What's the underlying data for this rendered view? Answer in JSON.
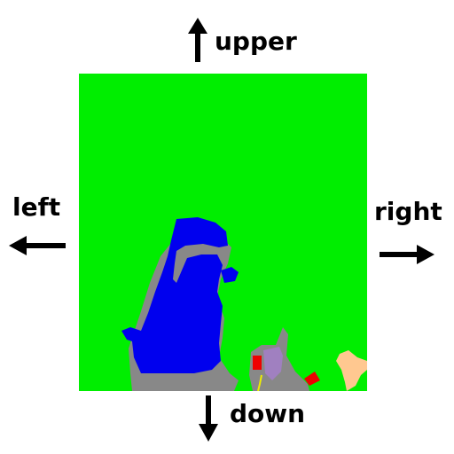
{
  "directions": {
    "up": "upper",
    "left": "left",
    "right": "right",
    "down": "down"
  },
  "colors": {
    "terrain": "#00ee00",
    "water": "#0000ee",
    "road": "#888888",
    "building_purple": "#a080c0",
    "building_red": "#ee0000",
    "sand": "#ffc890",
    "path": "#eeee00",
    "arrow": "#000000"
  },
  "map": {
    "legend": "semantic map tile with direction labels"
  }
}
